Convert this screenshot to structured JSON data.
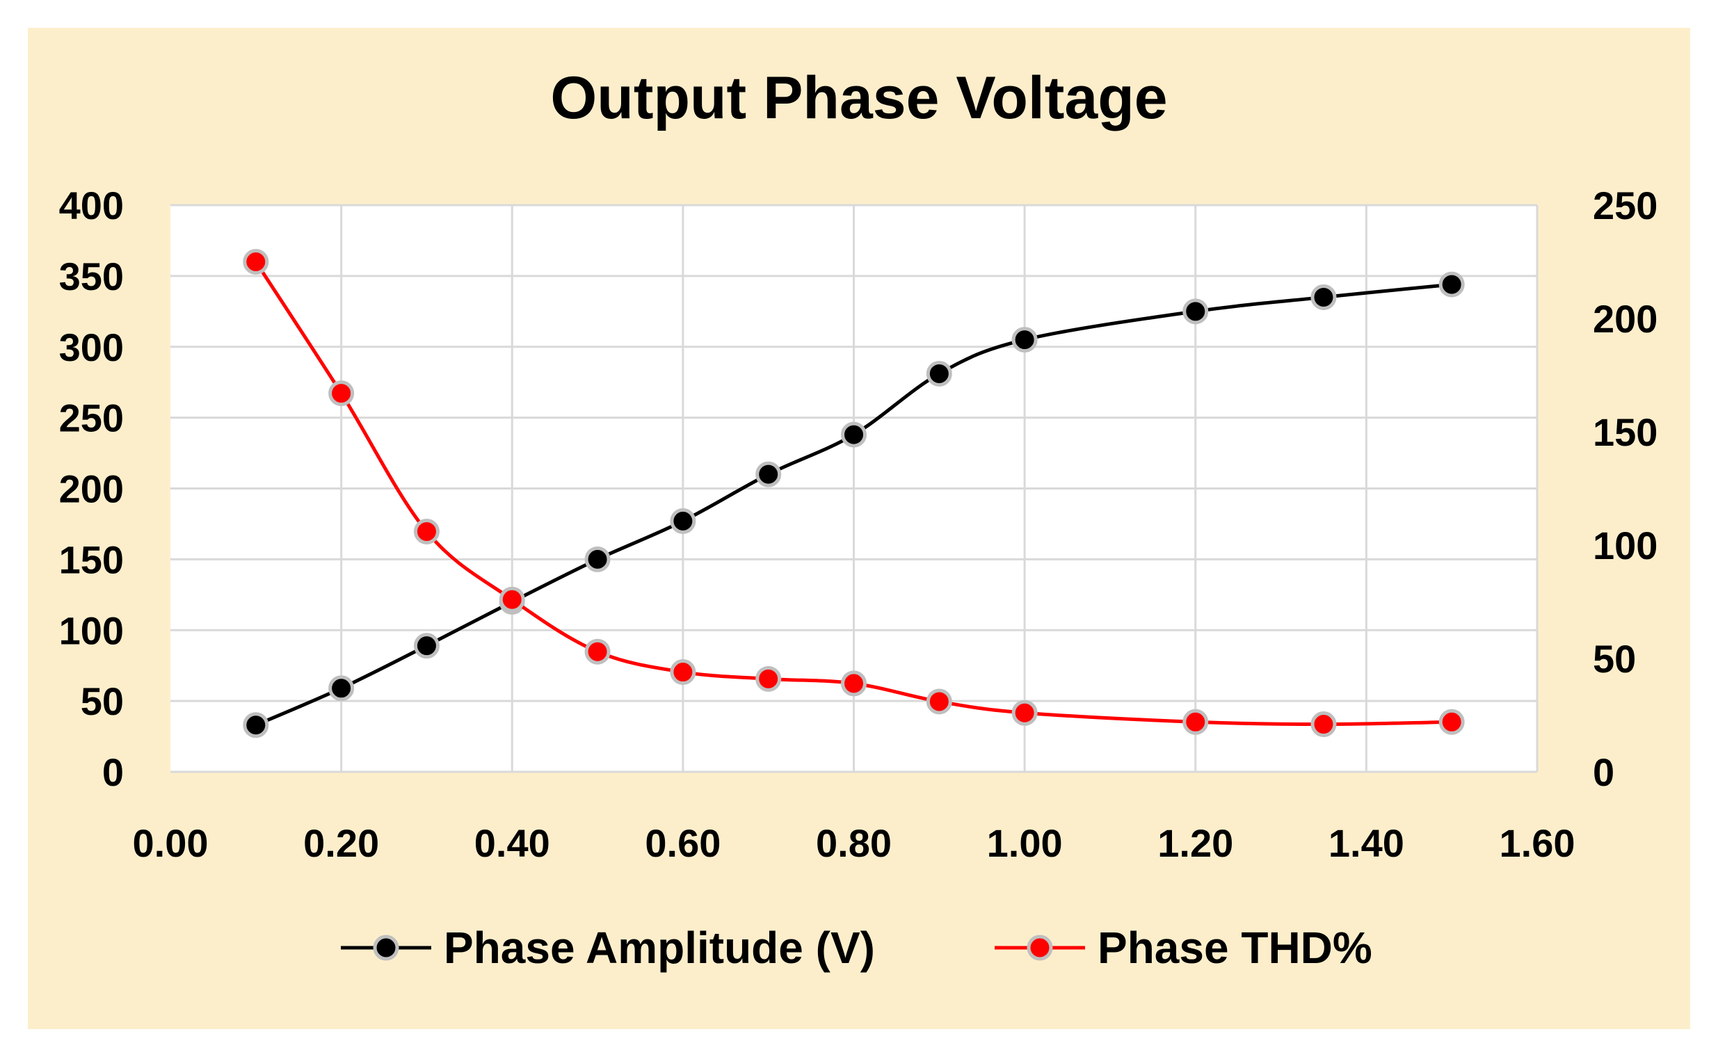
{
  "chart_data": {
    "type": "line",
    "title": "Output Phase Voltage",
    "xlabel": "",
    "ylabel": "",
    "y2label": "",
    "xlim": [
      0,
      1.6
    ],
    "ylim": [
      0,
      400
    ],
    "y2lim": [
      0,
      250
    ],
    "xticks": [
      "0.00",
      "0.20",
      "0.40",
      "0.60",
      "0.80",
      "1.00",
      "1.20",
      "1.40",
      "1.60"
    ],
    "yticks": [
      "0",
      "50",
      "100",
      "150",
      "200",
      "250",
      "300",
      "350",
      "400"
    ],
    "y2ticks": [
      "0",
      "50",
      "100",
      "150",
      "200",
      "250"
    ],
    "grid": true,
    "legend_position": "bottom",
    "background_color": "#fdeecb",
    "plot_background_color": "#ffffff",
    "series": [
      {
        "name": "Phase Amplitude (V)",
        "axis": "left",
        "color": "#000000",
        "x": [
          0.1,
          0.2,
          0.3,
          0.4,
          0.5,
          0.6,
          0.7,
          0.8,
          0.9,
          1.0,
          1.2,
          1.35,
          1.5
        ],
        "values": [
          33,
          59,
          89,
          120,
          150,
          177,
          210,
          238,
          281,
          305,
          325,
          335,
          344
        ]
      },
      {
        "name": "Phase THD%",
        "axis": "right",
        "color": "#ff0000",
        "x": [
          0.1,
          0.2,
          0.3,
          0.4,
          0.5,
          0.6,
          0.7,
          0.8,
          0.9,
          1.0,
          1.2,
          1.35,
          1.5
        ],
        "values": [
          225,
          167,
          106,
          76,
          53,
          44,
          41,
          39,
          31,
          26,
          22,
          21,
          22
        ]
      }
    ]
  }
}
